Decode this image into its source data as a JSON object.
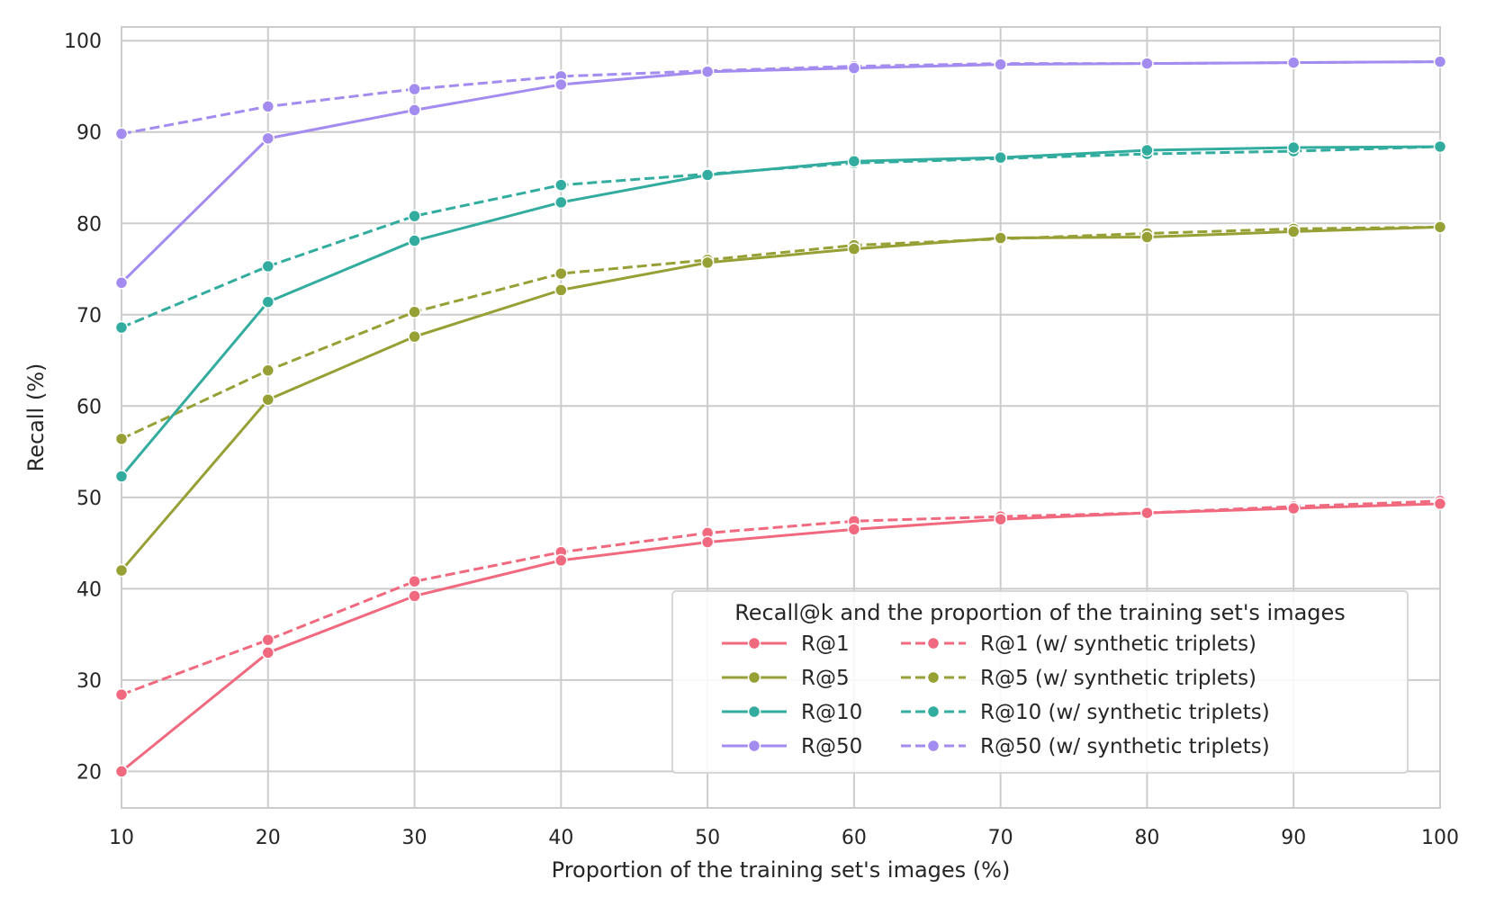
{
  "chart_data": {
    "type": "line",
    "title": "",
    "xlabel": "Proportion of the training set's images (%)",
    "ylabel": "Recall (%)",
    "xlim": [
      10,
      100
    ],
    "ylim": [
      16,
      101.5
    ],
    "xticks": [
      10,
      20,
      30,
      40,
      50,
      60,
      70,
      80,
      90,
      100
    ],
    "yticks": [
      20,
      30,
      40,
      50,
      60,
      70,
      80,
      90,
      100
    ],
    "grid": true,
    "legend": {
      "title": "Recall@k and the proportion of the training set's images",
      "position": "bottom-right",
      "columns": 2
    },
    "x": [
      10,
      20,
      30,
      40,
      50,
      60,
      70,
      80,
      90,
      100
    ],
    "series": [
      {
        "name": "R@1",
        "color": "#f0697e",
        "dash": "solid",
        "values": [
          20.0,
          33.0,
          39.2,
          43.1,
          45.1,
          46.5,
          47.6,
          48.3,
          48.8,
          49.3
        ]
      },
      {
        "name": "R@5",
        "color": "#96a035",
        "dash": "solid",
        "values": [
          42.0,
          60.7,
          67.6,
          72.7,
          75.7,
          77.2,
          78.4,
          78.5,
          79.1,
          79.6
        ]
      },
      {
        "name": "R@10",
        "color": "#32ac9e",
        "dash": "solid",
        "values": [
          52.3,
          71.4,
          78.1,
          82.3,
          85.3,
          86.8,
          87.2,
          88.0,
          88.3,
          88.4
        ]
      },
      {
        "name": "R@50",
        "color": "#a38bf0",
        "dash": "solid",
        "values": [
          73.5,
          89.3,
          92.4,
          95.2,
          96.6,
          97.0,
          97.4,
          97.5,
          97.6,
          97.7
        ]
      },
      {
        "name": "R@1 (w/ synthetic triplets)",
        "color": "#f0697e",
        "dash": "dashed",
        "values": [
          28.4,
          34.4,
          40.8,
          44.0,
          46.1,
          47.4,
          47.9,
          48.3,
          49.0,
          49.6
        ]
      },
      {
        "name": "R@5 (w/ synthetic triplets)",
        "color": "#96a035",
        "dash": "dashed",
        "values": [
          56.4,
          63.9,
          70.3,
          74.5,
          76.0,
          77.6,
          78.3,
          78.9,
          79.4,
          79.6
        ]
      },
      {
        "name": "R@10 (w/ synthetic triplets)",
        "color": "#32ac9e",
        "dash": "dashed",
        "values": [
          68.6,
          75.3,
          80.8,
          84.2,
          85.4,
          86.6,
          87.1,
          87.6,
          87.9,
          88.4
        ]
      },
      {
        "name": "R@50 (w/ synthetic triplets)",
        "color": "#a38bf0",
        "dash": "dashed",
        "values": [
          89.8,
          92.8,
          94.7,
          96.1,
          96.7,
          97.2,
          97.5,
          97.5,
          97.6,
          97.7
        ]
      }
    ]
  }
}
